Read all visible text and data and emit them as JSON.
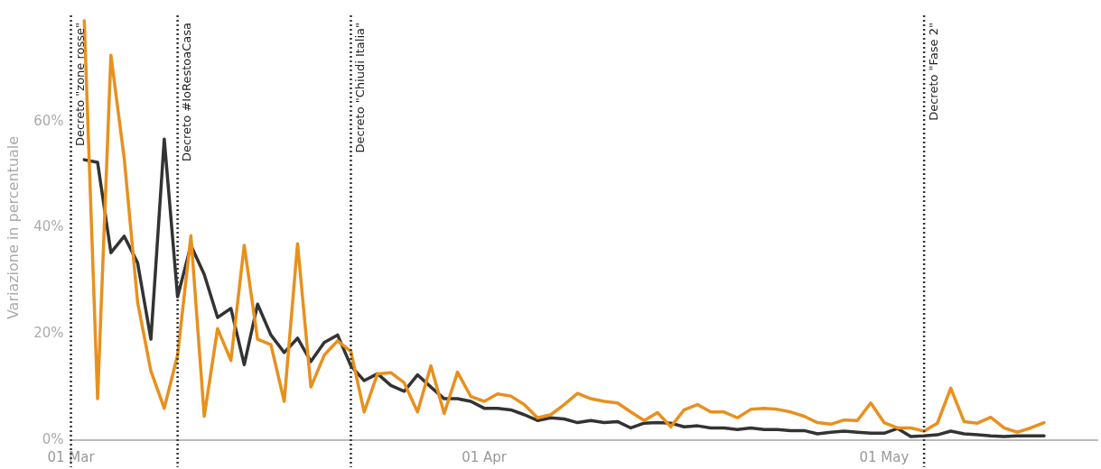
{
  "chart_data": {
    "type": "line",
    "ylabel": "Variazione in percentuale",
    "x": [
      "--03-02",
      "--03-03",
      "--03-04",
      "--03-05",
      "--03-06",
      "--03-07",
      "--03-08",
      "--03-09",
      "--03-10",
      "--03-11",
      "--03-12",
      "--03-13",
      "--03-14",
      "--03-15",
      "--03-16",
      "--03-17",
      "--03-18",
      "--03-19",
      "--03-20",
      "--03-21",
      "--03-22",
      "--03-23",
      "--03-24",
      "--03-25",
      "--03-26",
      "--03-27",
      "--03-28",
      "--03-29",
      "--03-30",
      "--03-31",
      "--04-01",
      "--04-02",
      "--04-03",
      "--04-04",
      "--04-05",
      "--04-06",
      "--04-07",
      "--04-08",
      "--04-09",
      "--04-10",
      "--04-11",
      "--04-12",
      "--04-13",
      "--04-14",
      "--04-15",
      "--04-16",
      "--04-17",
      "--04-18",
      "--04-19",
      "--04-20",
      "--04-21",
      "--04-22",
      "--04-23",
      "--04-24",
      "--04-25",
      "--04-26",
      "--04-27",
      "--04-28",
      "--04-29",
      "--04-30",
      "--05-01",
      "--05-02",
      "--05-03",
      "--05-04",
      "--05-05",
      "--05-06",
      "--05-07",
      "--05-08",
      "--05-09",
      "--05-10",
      "--05-11",
      "--05-12",
      "--05-13"
    ],
    "series": [
      {
        "color": "#e8901e",
        "values": [
          79,
          7.8,
          72.5,
          53,
          26,
          13,
          6,
          16,
          38.5,
          4.5,
          21,
          15,
          36.7,
          19,
          18,
          7.3,
          37,
          10,
          16,
          18.7,
          16.7,
          5.3,
          12.5,
          12.7,
          10.8,
          5.3,
          14,
          5,
          12.8,
          8.2,
          7.3,
          8.7,
          8.3,
          6.7,
          4.2,
          4.8,
          6.7,
          8.8,
          7.8,
          7.3,
          7,
          5.3,
          3.7,
          5.2,
          2.5,
          5.7,
          6.7,
          5.3,
          5.3,
          4.2,
          5.8,
          6,
          5.8,
          5.3,
          4.5,
          3.3,
          3,
          3.8,
          3.7,
          7,
          3.3,
          2.3,
          2.3,
          1.7,
          3.2,
          9.8,
          3.5,
          3.2,
          4.3,
          2.3,
          1.5,
          2.3,
          3.3
        ]
      },
      {
        "color": "#333333",
        "values": [
          52.8,
          52.3,
          35.3,
          38.4,
          33.4,
          19,
          56.7,
          27,
          36.7,
          31.2,
          23.1,
          24.8,
          14.2,
          25.6,
          19.8,
          16.5,
          19.2,
          14.8,
          18.4,
          19.8,
          14,
          11.2,
          12.5,
          10.3,
          9.2,
          12.3,
          10,
          7.8,
          7.8,
          7.3,
          6,
          6,
          5.7,
          4.8,
          3.7,
          4.2,
          4,
          3.3,
          3.7,
          3.3,
          3.5,
          2.3,
          3.2,
          3.3,
          3.2,
          2.5,
          2.7,
          2.3,
          2.3,
          2,
          2.3,
          2,
          2,
          1.8,
          1.8,
          1.2,
          1.5,
          1.7,
          1.5,
          1.3,
          1.3,
          2.2,
          0.7,
          0.8,
          1,
          1.7,
          1.2,
          1,
          0.8,
          0.7,
          0.8,
          0.8,
          0.8
        ]
      }
    ],
    "xlim": [
      "--03-01",
      "--05-17"
    ],
    "xticks": [
      {
        "value": "--03-01",
        "label": "01 Mar"
      },
      {
        "value": "--04-01",
        "label": "01 Apr"
      },
      {
        "value": "--05-01",
        "label": "01 May"
      }
    ],
    "ylim": [
      0,
      80
    ],
    "yticks": [
      {
        "value": 0,
        "label": "0%"
      },
      {
        "value": 20,
        "label": "20%"
      },
      {
        "value": 40,
        "label": "40%"
      },
      {
        "value": 60,
        "label": "60%"
      }
    ],
    "ref_lines": [
      {
        "axis": "x",
        "value": "--03-01",
        "label": "Decreto \"zone rosse\"",
        "line_style": "dotted",
        "color": "#333333"
      },
      {
        "axis": "x",
        "value": "--03-09",
        "label": "Decreto #IoRestoaCasa",
        "line_style": "dotted",
        "color": "#333333"
      },
      {
        "axis": "x",
        "value": "--03-22",
        "label": "Decreto \"Chiudi Italia\"",
        "line_style": "dotted",
        "color": "#333333"
      },
      {
        "axis": "x",
        "value": "--05-04",
        "label": "Decreto \"Fase 2\"",
        "line_style": "dotted",
        "color": "#333333"
      }
    ],
    "grid": false,
    "legend": false,
    "marker": "none",
    "line_style": "solid"
  }
}
